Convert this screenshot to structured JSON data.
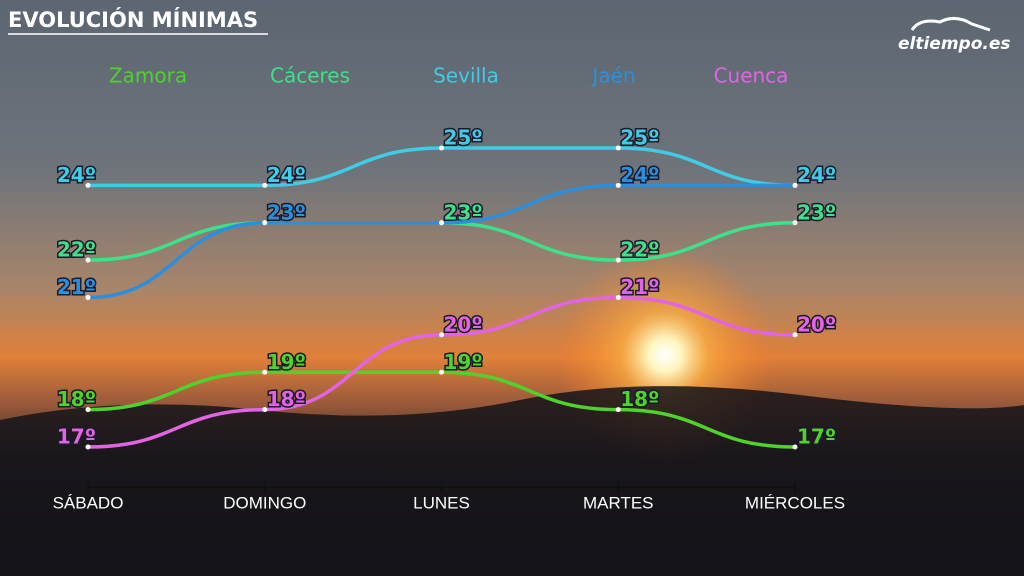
{
  "chart_data": {
    "type": "line",
    "title": "EVOLUCIÓN MÍNIMAS",
    "logo": "eltiempo.es",
    "categories": [
      "SÁBADO",
      "DOMINGO",
      "LUNES",
      "MARTES",
      "MIÉRCOLES"
    ],
    "series": [
      {
        "name": "Zamora",
        "color": "#4fd22c",
        "values": [
          18,
          19,
          19,
          18,
          17
        ],
        "value_labels": [
          "18º",
          "19º",
          "19º",
          "18º",
          "17º"
        ]
      },
      {
        "name": "Cáceres",
        "color": "#3ee08a",
        "values": [
          22,
          23,
          23,
          22,
          23
        ],
        "value_labels": [
          "22º",
          null,
          "23º",
          "22º",
          "23º"
        ]
      },
      {
        "name": "Sevilla",
        "color": "#40cbe6",
        "values": [
          24,
          24,
          25,
          25,
          24
        ],
        "value_labels": [
          "24º",
          "24º",
          "25º",
          "25º",
          "24º"
        ]
      },
      {
        "name": "Jaén",
        "color": "#2b8fdc",
        "values": [
          21,
          23,
          23,
          24,
          24
        ],
        "value_labels": [
          "21º",
          "23º",
          null,
          "24º",
          null
        ]
      },
      {
        "name": "Cuenca",
        "color": "#e264e4",
        "values": [
          17,
          18,
          20,
          21,
          20
        ],
        "value_labels": [
          "17º",
          "18º",
          "20º",
          "21º",
          "20º"
        ]
      }
    ]
  }
}
